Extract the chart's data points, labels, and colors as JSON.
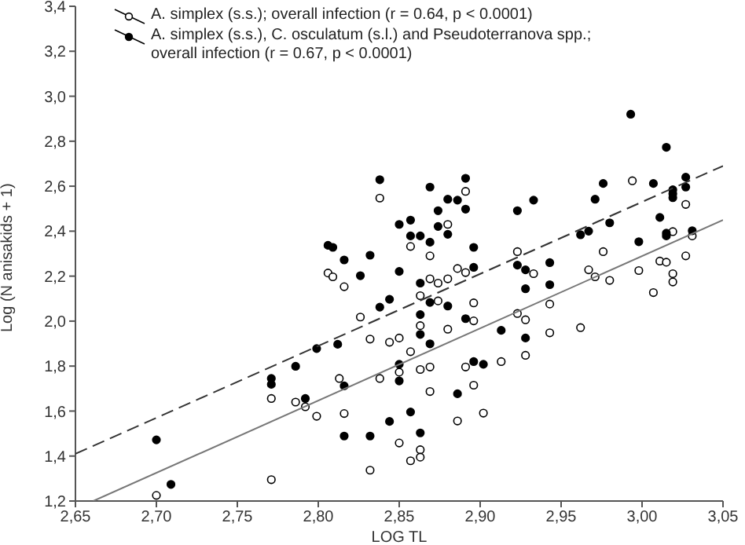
{
  "chart_data": {
    "type": "scatter",
    "xlabel": "LOG TL",
    "ylabel": "Log (N anisakids + 1)",
    "xlim": [
      2.65,
      3.05
    ],
    "ylim": [
      1.2,
      3.4
    ],
    "xticks": [
      {
        "value": 2.65,
        "label": "2,65"
      },
      {
        "value": 2.7,
        "label": "2,70"
      },
      {
        "value": 2.75,
        "label": "2,75"
      },
      {
        "value": 2.8,
        "label": "2,80"
      },
      {
        "value": 2.85,
        "label": "2,85"
      },
      {
        "value": 2.9,
        "label": "2,90"
      },
      {
        "value": 2.95,
        "label": "2,95"
      },
      {
        "value": 3.0,
        "label": "3,00"
      },
      {
        "value": 3.05,
        "label": "3,05"
      }
    ],
    "yticks": [
      {
        "value": 1.2,
        "label": "1,2"
      },
      {
        "value": 1.4,
        "label": "1,4"
      },
      {
        "value": 1.6,
        "label": "1,6"
      },
      {
        "value": 1.8,
        "label": "1,8"
      },
      {
        "value": 2.0,
        "label": "2,0"
      },
      {
        "value": 2.2,
        "label": "2,2"
      },
      {
        "value": 2.4,
        "label": "2,4"
      },
      {
        "value": 2.6,
        "label": "2,6"
      },
      {
        "value": 2.8,
        "label": "2,8"
      },
      {
        "value": 3.0,
        "label": "3,0"
      },
      {
        "value": 3.2,
        "label": "3,2"
      },
      {
        "value": 3.4,
        "label": "3,4"
      }
    ],
    "grid": false,
    "legend": "top left",
    "marker": "circle",
    "series": [
      {
        "name": "A. simplex (s.s.); overall infection (r = 0.64, p < 0.0001)",
        "color": "#ffffff",
        "x": [
          2.838,
          2.806,
          2.809,
          2.816,
          2.826,
          2.832,
          2.844,
          2.813,
          2.771,
          2.786,
          2.792,
          2.799,
          2.816,
          2.838,
          2.832,
          2.771,
          2.7,
          2.85,
          2.85,
          2.85,
          2.857,
          2.857,
          2.857,
          2.863,
          2.863,
          2.863,
          2.863,
          2.863,
          2.869,
          2.869,
          2.869,
          2.869,
          2.874,
          2.874,
          2.88,
          2.88,
          2.88,
          2.886,
          2.886,
          2.891,
          2.891,
          2.891,
          2.896,
          2.896,
          2.896,
          2.902,
          2.913,
          2.923,
          2.923,
          2.928,
          2.928,
          2.933,
          2.943,
          2.943,
          2.962,
          2.967,
          2.971,
          2.976,
          2.98,
          2.994,
          2.998,
          3.007,
          3.011,
          3.015,
          3.019,
          3.019,
          3.019,
          3.027,
          3.027,
          3.031
        ],
        "values": [
          2.547,
          2.214,
          2.197,
          2.153,
          2.018,
          1.92,
          1.906,
          1.745,
          1.656,
          1.64,
          1.619,
          1.577,
          1.589,
          1.745,
          1.337,
          1.295,
          1.225,
          1.925,
          1.773,
          1.458,
          2.332,
          1.864,
          1.379,
          2.113,
          1.98,
          1.785,
          1.428,
          1.395,
          2.29,
          2.188,
          1.796,
          1.687,
          2.169,
          2.09,
          2.43,
          2.188,
          1.964,
          2.234,
          1.556,
          2.577,
          2.216,
          1.796,
          2.081,
          2.001,
          1.715,
          1.591,
          1.82,
          2.309,
          2.034,
          2.006,
          1.848,
          2.211,
          2.076,
          1.948,
          1.971,
          2.228,
          2.197,
          2.309,
          2.181,
          2.624,
          2.225,
          2.127,
          2.267,
          2.262,
          2.398,
          2.211,
          2.174,
          2.519,
          2.29,
          2.379
        ]
      },
      {
        "name": "A. simplex (s.s.), C. osculatum (s.l.) and Pseudoterranova spp.; overall infection (r = 0.67, p < 0.0001)",
        "color": "#000000",
        "x": [
          2.838,
          2.806,
          2.809,
          2.816,
          2.832,
          2.826,
          2.844,
          2.838,
          2.812,
          2.799,
          2.786,
          2.771,
          2.771,
          2.792,
          2.816,
          2.816,
          2.832,
          2.844,
          2.7,
          2.709,
          2.85,
          2.85,
          2.85,
          2.85,
          2.857,
          2.857,
          2.857,
          2.863,
          2.863,
          2.863,
          2.863,
          2.863,
          2.869,
          2.869,
          2.869,
          2.869,
          2.874,
          2.874,
          2.88,
          2.88,
          2.88,
          2.886,
          2.886,
          2.891,
          2.891,
          2.891,
          2.896,
          2.896,
          2.896,
          2.902,
          2.913,
          2.923,
          2.923,
          2.928,
          2.928,
          2.928,
          2.933,
          2.943,
          2.943,
          2.962,
          2.967,
          2.971,
          2.976,
          2.98,
          2.998,
          3.007,
          3.011,
          3.015,
          3.015,
          3.019,
          3.019,
          3.019,
          3.027,
          3.027,
          3.031,
          2.993,
          3.015
        ],
        "values": [
          2.629,
          2.337,
          2.328,
          2.272,
          2.293,
          2.202,
          2.097,
          2.062,
          1.897,
          1.878,
          1.799,
          1.745,
          1.719,
          1.656,
          1.712,
          1.489,
          1.489,
          1.554,
          1.472,
          1.274,
          2.43,
          2.221,
          1.808,
          1.734,
          2.449,
          2.379,
          1.596,
          2.379,
          2.169,
          2.029,
          1.941,
          1.503,
          2.596,
          2.351,
          2.083,
          1.899,
          2.491,
          2.421,
          2.542,
          2.386,
          2.067,
          2.538,
          1.677,
          2.635,
          2.498,
          2.011,
          2.328,
          2.239,
          1.82,
          1.808,
          1.959,
          2.491,
          2.249,
          2.228,
          2.144,
          1.925,
          2.538,
          2.26,
          2.162,
          2.384,
          2.4,
          2.542,
          2.612,
          2.437,
          2.353,
          2.612,
          2.461,
          2.391,
          2.379,
          2.584,
          2.566,
          2.549,
          2.64,
          2.596,
          2.402,
          2.92,
          2.773
        ]
      },
      {
        "type": "line",
        "color": "#777777",
        "line_style": "solid",
        "marker": "none",
        "x": [
          2.661,
          3.05
        ],
        "values": [
          1.2,
          2.45
        ]
      },
      {
        "type": "line",
        "color": "#333333",
        "line_style": "dashed",
        "marker": "none",
        "x": [
          2.65,
          3.05
        ],
        "values": [
          1.41,
          2.69
        ]
      }
    ]
  }
}
